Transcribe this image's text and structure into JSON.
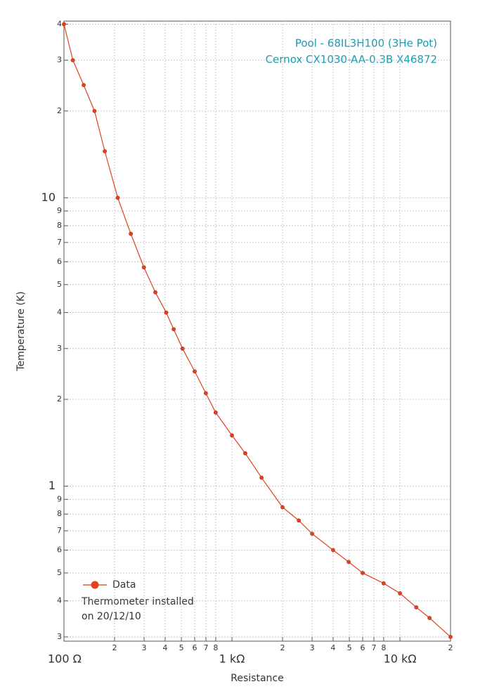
{
  "chart_data": {
    "type": "line",
    "title": "Pool - 68IL3H100 (3He Pot)",
    "subtitle": "Cernox CX1030-AA-0.3B X46872",
    "xlabel": "Resistance",
    "ylabel": "Temperature (K)",
    "annotation": [
      "Thermometer installed",
      "on 20/12/10"
    ],
    "x_scale": "log",
    "y_scale": "log",
    "grid": true,
    "legend": "lower left",
    "x": [
      100,
      113,
      131,
      152,
      175,
      209,
      250,
      299,
      350,
      406,
      450,
      508,
      600,
      699,
      800,
      1000,
      1200,
      1500,
      2000,
      2500,
      3000,
      4000,
      4950,
      6000,
      8000,
      10000,
      12500,
      15000,
      20000
    ],
    "series": [
      {
        "name": "Data",
        "color": "#e0421f",
        "values": [
          40,
          30,
          24.6,
          20,
          14.5,
          10,
          7.5,
          5.74,
          4.7,
          4.0,
          3.5,
          3.0,
          2.5,
          2.1,
          1.8,
          1.5,
          1.3,
          1.07,
          0.845,
          0.76,
          0.684,
          0.6,
          0.546,
          0.5,
          0.46,
          0.425,
          0.38,
          0.349,
          0.3
        ]
      }
    ],
    "xlim": [
      100,
      20000
    ],
    "xticks": [
      {
        "value": 100,
        "label": "100  Ω"
      },
      {
        "value": 200,
        "label": "2"
      },
      {
        "value": 300,
        "label": "3"
      },
      {
        "value": 400,
        "label": "4"
      },
      {
        "value": 500,
        "label": "5"
      },
      {
        "value": 600,
        "label": "6"
      },
      {
        "value": 700,
        "label": "7"
      },
      {
        "value": 800,
        "label": "8"
      },
      {
        "value": 1000,
        "label": "1 kΩ"
      },
      {
        "value": 2000,
        "label": "2"
      },
      {
        "value": 3000,
        "label": "3"
      },
      {
        "value": 4000,
        "label": "4"
      },
      {
        "value": 5000,
        "label": "5"
      },
      {
        "value": 6000,
        "label": "6"
      },
      {
        "value": 7000,
        "label": "7"
      },
      {
        "value": 8000,
        "label": "8"
      },
      {
        "value": 10000,
        "label": "10 kΩ"
      },
      {
        "value": 20000,
        "label": "2"
      }
    ],
    "ylim": [
      0.29,
      41
    ],
    "yticks": [
      {
        "value": 0.3,
        "label": "3"
      },
      {
        "value": 0.4,
        "label": "4"
      },
      {
        "value": 0.5,
        "label": "5"
      },
      {
        "value": 0.6,
        "label": "6"
      },
      {
        "value": 0.7,
        "label": "7"
      },
      {
        "value": 0.8,
        "label": "8"
      },
      {
        "value": 0.9,
        "label": "9"
      },
      1,
      2,
      3,
      4,
      5,
      6,
      7,
      8,
      9,
      10,
      {
        "value": 20,
        "label": "2"
      },
      {
        "value": 30,
        "label": "3"
      },
      {
        "value": 40,
        "label": "4"
      }
    ]
  }
}
